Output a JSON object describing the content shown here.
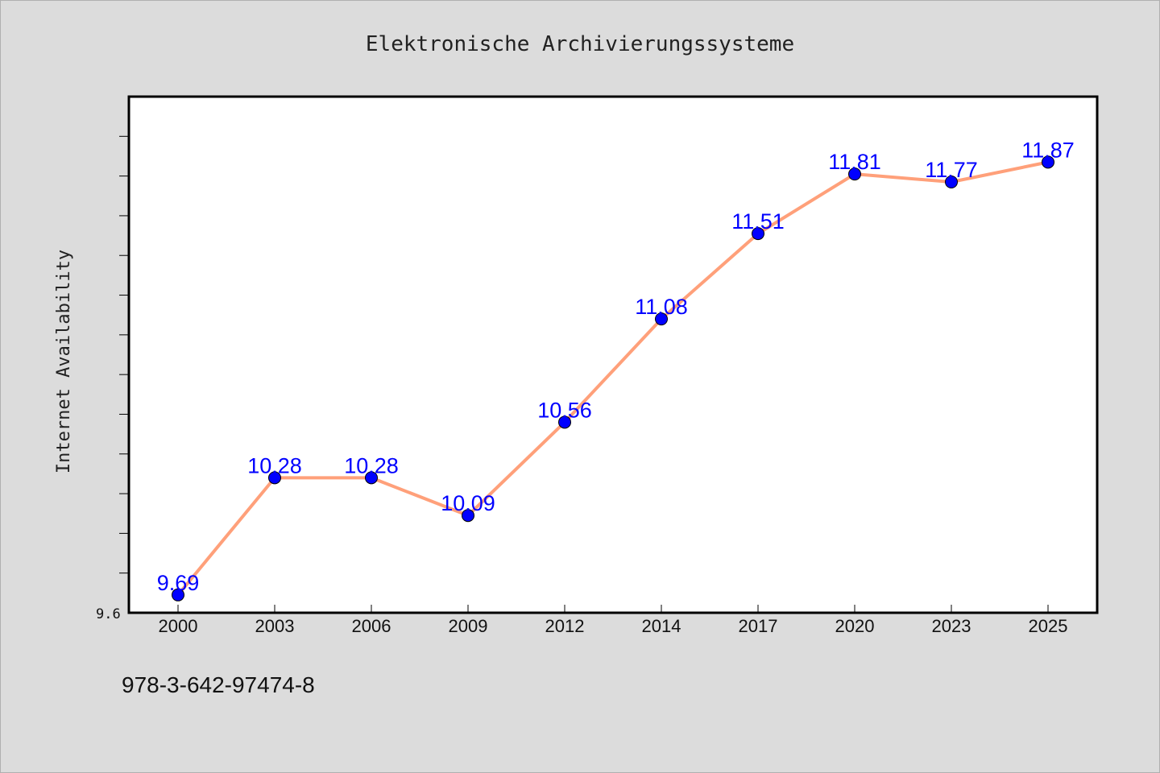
{
  "colors": {
    "background": "#dcdcdc",
    "plot_background": "#ffffff",
    "line": "#ffa07a",
    "marker": "#0000ff",
    "data_label": "#0000ff"
  },
  "footer": {
    "isbn": "978-3-642-97474-8"
  },
  "chart_data": {
    "type": "line",
    "title": "Elektronische Archivierungssysteme",
    "xlabel": "",
    "ylabel": "Internet Availability",
    "categories": [
      "2000",
      "2003",
      "2006",
      "2009",
      "2012",
      "2014",
      "2017",
      "2020",
      "2023",
      "2025"
    ],
    "series": [
      {
        "values": [
          9.69,
          10.28,
          10.28,
          10.09,
          10.56,
          11.08,
          11.51,
          11.81,
          11.77,
          11.87
        ]
      }
    ],
    "data_labels": [
      "9.69",
      "10.28",
      "10.28",
      "10.09",
      "10.56",
      "11.08",
      "11.51",
      "11.81",
      "11.77",
      "11.87"
    ],
    "ylim": [
      9.6,
      12.2
    ],
    "ytick_labels": [
      "9.6"
    ],
    "grid": false,
    "legend": "none"
  }
}
